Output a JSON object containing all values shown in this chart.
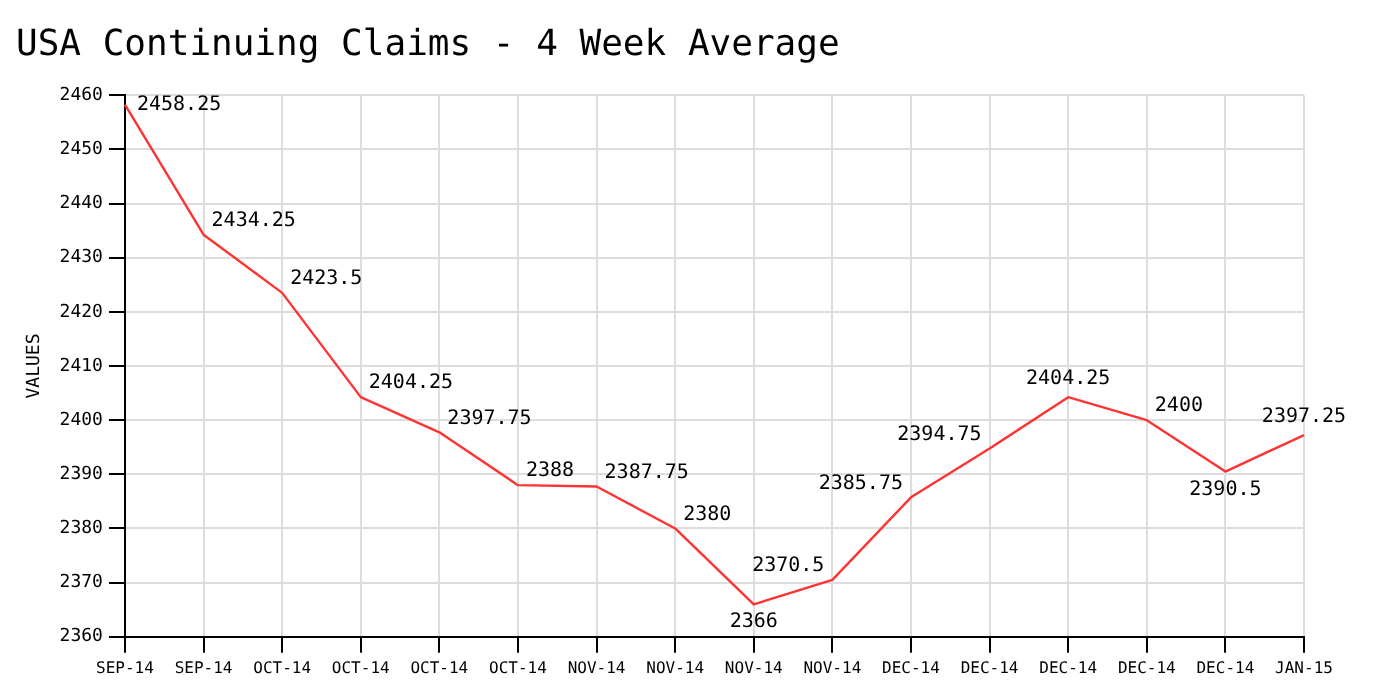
{
  "chart_data": {
    "type": "line",
    "title": "USA Continuing Claims - 4 Week Average",
    "ylabel": "VALUES",
    "categories": [
      "SEP-14",
      "SEP-14",
      "OCT-14",
      "OCT-14",
      "OCT-14",
      "OCT-14",
      "NOV-14",
      "NOV-14",
      "NOV-14",
      "NOV-14",
      "DEC-14",
      "DEC-14",
      "DEC-14",
      "DEC-14",
      "DEC-14",
      "JAN-15"
    ],
    "series": [
      {
        "color": "#ff3333",
        "values": [
          2458.25,
          2434.25,
          2423.5,
          2404.25,
          2397.75,
          2388,
          2387.75,
          2380,
          2366,
          2370.5,
          2385.75,
          2394.75,
          2404.25,
          2400,
          2390.5,
          2397.25
        ]
      }
    ],
    "ylim": [
      2360,
      2460
    ],
    "yticks": [
      2360,
      2370,
      2380,
      2390,
      2400,
      2410,
      2420,
      2430,
      2440,
      2450,
      2460
    ],
    "grid": true,
    "legend": false,
    "marker": "none",
    "line_style": "solid",
    "data_labels": true
  }
}
